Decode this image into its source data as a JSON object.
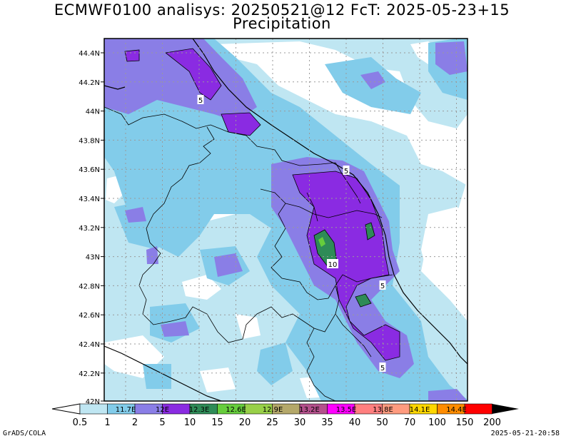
{
  "title": {
    "line1": "ECMWF0100 analisys: 20250521@12 FcT: 2025-05-23+15",
    "line2": "Precipitation"
  },
  "map": {
    "lat_labels": [
      "44.4N",
      "44.2N",
      "44N",
      "43.8N",
      "43.6N",
      "43.4N",
      "43.2N",
      "43N",
      "42.8N",
      "42.6N",
      "42.4N",
      "42.2N",
      "42N"
    ],
    "lon_labels": [
      "11.7E",
      "12E",
      "12.3E",
      "12.6E",
      "12.9E",
      "13.2E",
      "13.5E",
      "13.8E",
      "14.1E",
      "14.4E"
    ],
    "contour_labels": [
      "5",
      "5",
      "10",
      "5",
      "5"
    ],
    "colors": {
      "c1": "#bfe6f2",
      "c2": "#82ccea",
      "c3": "#8a7ee6",
      "c4": "#8a2be2",
      "c5": "#2e8b57",
      "c6": "#66cd3c"
    }
  },
  "colorbar": {
    "ticks": [
      "0.5",
      "1",
      "2",
      "5",
      "10",
      "15",
      "20",
      "25",
      "30",
      "35",
      "40",
      "50",
      "70",
      "100",
      "150",
      "200"
    ],
    "colors": [
      "#bfe6f2",
      "#82ccea",
      "#8a7ee6",
      "#8a2be2",
      "#2e8b57",
      "#66cd3c",
      "#98d048",
      "#b4a86a",
      "#b4508c",
      "#ff00ff",
      "#ff7f7f",
      "#ff9b7f",
      "#ffd700",
      "#ff8c00",
      "#ff0000",
      "#8b0000"
    ]
  },
  "footer": {
    "left": "GrADS/COLA",
    "right": "2025-05-21-20:58"
  }
}
